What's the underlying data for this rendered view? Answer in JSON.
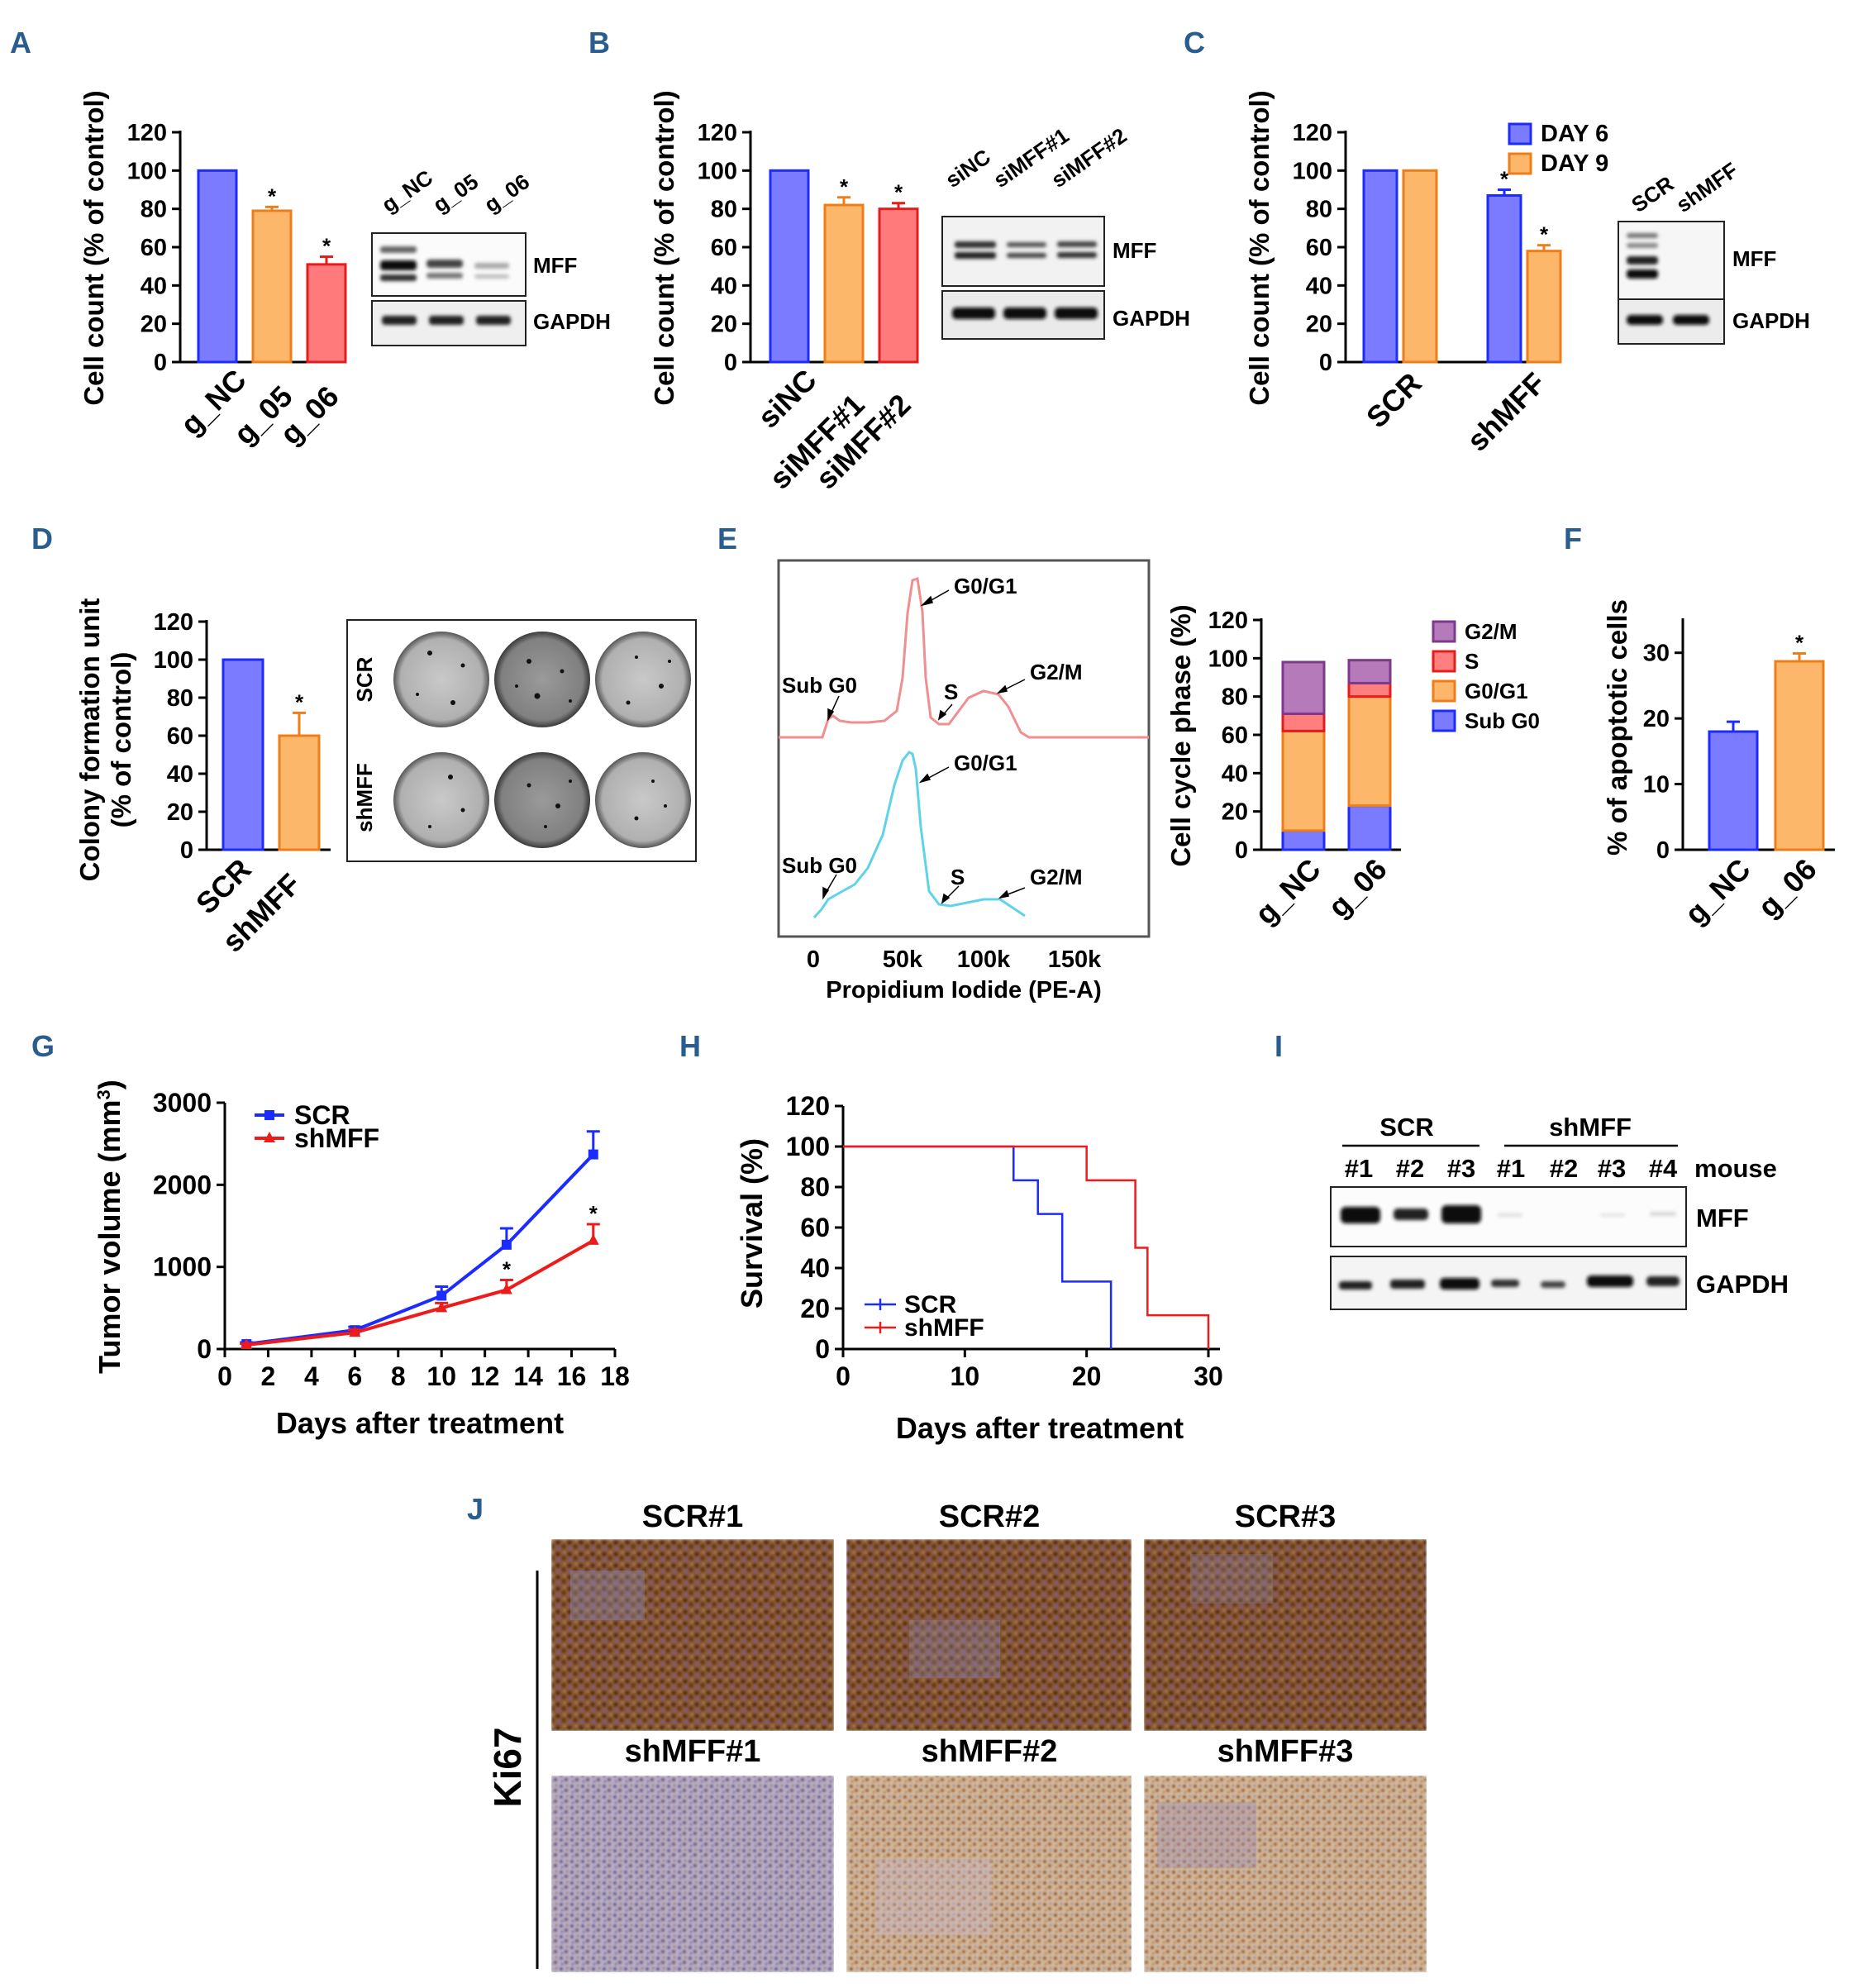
{
  "figure": {
    "colors": {
      "blue": "#7b7bff",
      "orange": "#fdb76a",
      "red": "#ff7b7b",
      "purple": "#b47ab9",
      "pink": "#ff7f7f",
      "cyan": "#5fd3e8",
      "salmon": "#ef8f8f",
      "line_blue": "#1c2bff",
      "line_red": "#ee1b1b"
    },
    "panels": {
      "A": {
        "letter": "A",
        "blot_lanes": [
          "g_NC",
          "g_05",
          "g_06"
        ],
        "blot_rows": [
          "MFF",
          "GAPDH"
        ]
      },
      "B": {
        "letter": "B",
        "blot_lanes": [
          "siNC",
          "siMFF#1",
          "siMFF#2"
        ],
        "blot_rows": [
          "MFF",
          "GAPDH"
        ]
      },
      "C": {
        "letter": "C",
        "blot_lanes": [
          "SCR",
          "shMFF"
        ],
        "blot_rows": [
          "MFF",
          "GAPDH"
        ]
      },
      "D": {
        "letter": "D",
        "plate_rows": [
          "SCR",
          "shMFF"
        ]
      },
      "E": {
        "letter": "E",
        "hist_labels": {
          "g0g1": "G0/G1",
          "subg0": "Sub G0",
          "s": "S",
          "g2m": "G2/M"
        },
        "hist_xticks": [
          "0",
          "50k",
          "100k",
          "150k"
        ],
        "hist_xlabel": "Propidium Iodide (PE-A)"
      },
      "F": {
        "letter": "F"
      },
      "G": {
        "letter": "G"
      },
      "H": {
        "letter": "H"
      },
      "I": {
        "letter": "I",
        "groups": [
          "SCR",
          "shMFF"
        ],
        "lanes": [
          "#1",
          "#2",
          "#3",
          "#1",
          "#2",
          "#3",
          "#4"
        ],
        "lane_caption": "mouse",
        "blot_rows": [
          "MFF",
          "GAPDH"
        ]
      },
      "J": {
        "letter": "J",
        "stain": "Ki67",
        "images": [
          "SCR#1",
          "SCR#2",
          "SCR#3",
          "shMFF#1",
          "shMFF#2",
          "shMFF#3"
        ]
      }
    },
    "asterisk": "*"
  },
  "chart_data": [
    {
      "id": "A",
      "type": "bar",
      "categories": [
        "g_NC",
        "g_05",
        "g_06"
      ],
      "values": [
        100,
        79,
        51
      ],
      "errors": [
        0,
        2,
        4
      ],
      "significant": [
        false,
        true,
        true
      ],
      "ylabel": "Cell count (% of control)",
      "ylim": [
        0,
        120
      ],
      "yticks": [
        "0",
        "20",
        "40",
        "60",
        "80",
        "100",
        "120"
      ]
    },
    {
      "id": "B",
      "type": "bar",
      "categories": [
        "siNC",
        "siMFF#1",
        "siMFF#2"
      ],
      "values": [
        100,
        82,
        80
      ],
      "errors": [
        0,
        4,
        3
      ],
      "significant": [
        false,
        true,
        true
      ],
      "ylabel": "Cell count (% of control)",
      "ylim": [
        0,
        120
      ],
      "yticks": [
        "0",
        "20",
        "40",
        "60",
        "80",
        "100",
        "120"
      ]
    },
    {
      "id": "C",
      "type": "bar",
      "categories": [
        "SCR",
        "shMFF"
      ],
      "series": [
        {
          "name": "DAY 6",
          "values": [
            100,
            87
          ],
          "errors": [
            0,
            3
          ]
        },
        {
          "name": "DAY 9",
          "values": [
            100,
            58
          ],
          "errors": [
            0,
            3
          ]
        }
      ],
      "significant": [
        [
          false,
          false
        ],
        [
          true,
          true
        ]
      ],
      "ylabel": "Cell count (% of control)",
      "ylim": [
        0,
        120
      ],
      "yticks": [
        "0",
        "20",
        "40",
        "60",
        "80",
        "100",
        "120"
      ]
    },
    {
      "id": "D",
      "type": "bar",
      "categories": [
        "SCR",
        "shMFF"
      ],
      "values": [
        100,
        60
      ],
      "errors": [
        0,
        12
      ],
      "significant": [
        false,
        true
      ],
      "ylabel": [
        "Colony formation unit",
        "(% of control)"
      ],
      "ylim": [
        0,
        120
      ],
      "yticks": [
        "0",
        "20",
        "40",
        "60",
        "80",
        "100",
        "120"
      ]
    },
    {
      "id": "E",
      "type": "bar",
      "stacked": true,
      "categories": [
        "g_NC",
        "g_06"
      ],
      "series": [
        {
          "name": "Sub G0",
          "values": [
            10,
            23
          ]
        },
        {
          "name": "G0/G1",
          "values": [
            52,
            57
          ]
        },
        {
          "name": "S",
          "values": [
            9,
            7
          ]
        },
        {
          "name": "G2/M",
          "values": [
            27,
            12
          ]
        }
      ],
      "legend_order": [
        "G2/M",
        "S",
        "G0/G1",
        "Sub G0"
      ],
      "ylabel": "Cell cycle phase (%)",
      "ylim": [
        0,
        120
      ],
      "yticks": [
        "0",
        "20",
        "40",
        "60",
        "80",
        "100",
        "120"
      ]
    },
    {
      "id": "F",
      "type": "bar",
      "categories": [
        "g_NC",
        "g_06"
      ],
      "values": [
        18,
        28.7
      ],
      "errors": [
        1.5,
        1.2
      ],
      "significant": [
        false,
        true
      ],
      "ylabel": "% of apoptotic cells",
      "ylim": [
        0,
        35
      ],
      "yticks": [
        "0",
        "10",
        "20",
        "30"
      ]
    },
    {
      "id": "G",
      "type": "line",
      "x": [
        1,
        6,
        10,
        13,
        17
      ],
      "series": [
        {
          "name": "SCR",
          "values": [
            60,
            230,
            650,
            1270,
            2370
          ],
          "errors": [
            20,
            40,
            110,
            200,
            280
          ]
        },
        {
          "name": "shMFF",
          "values": [
            50,
            200,
            500,
            720,
            1320
          ],
          "errors": [
            15,
            35,
            60,
            120,
            200
          ]
        }
      ],
      "significant_x": [
        13,
        17
      ],
      "xlabel": "Days after treatment",
      "ylabel_main": "Tumor volume (mm",
      "ylabel_sup": "3",
      "ylabel_end": ")",
      "xlim": [
        0,
        18
      ],
      "ylim": [
        0,
        3000
      ],
      "xticks": [
        "0",
        "2",
        "4",
        "6",
        "8",
        "10",
        "12",
        "14",
        "16",
        "18"
      ],
      "yticks": [
        "0",
        "1000",
        "2000",
        "3000"
      ]
    },
    {
      "id": "H",
      "type": "line",
      "step": true,
      "series": [
        {
          "name": "SCR",
          "x": [
            0,
            14,
            14,
            16,
            16,
            18,
            18,
            22,
            22
          ],
          "y": [
            100,
            100,
            83.3,
            83.3,
            66.7,
            66.7,
            33.3,
            33.3,
            0
          ]
        },
        {
          "name": "shMFF",
          "x": [
            0,
            20,
            20,
            24,
            24,
            25,
            25,
            30,
            30
          ],
          "y": [
            100,
            100,
            83.3,
            83.3,
            50,
            50,
            16.7,
            16.7,
            0
          ]
        }
      ],
      "xlabel": "Days after treatment",
      "ylabel": "Survival (%)",
      "xlim": [
        0,
        30
      ],
      "ylim": [
        0,
        120
      ],
      "xticks": [
        "0",
        "10",
        "20",
        "30"
      ],
      "yticks": [
        "0",
        "20",
        "40",
        "60",
        "80",
        "100",
        "120"
      ]
    }
  ]
}
